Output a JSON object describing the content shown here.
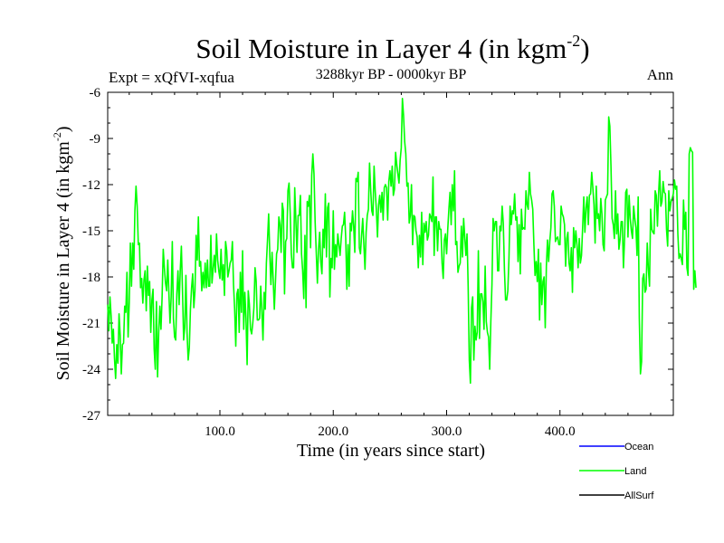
{
  "chart_data": {
    "type": "line",
    "title": {
      "main": "Soil Moisture in Layer 4 (in kgm",
      "sup": "-2",
      "close": ")"
    },
    "subtitle": "3288kyr BP - 0000kyr BP",
    "experiment": "Expt = xQfVI-xqfua",
    "season": "Ann",
    "xlabel": "Time (in years since start)",
    "ylabel": {
      "main": "Soil Moisture in Layer 4 (in kgm",
      "sup": "-2",
      "close": ")"
    },
    "xlim": [
      1,
      500
    ],
    "ylim": [
      -27,
      -6
    ],
    "xticks": [
      100,
      200,
      300,
      400
    ],
    "xtick_labels": [
      "100.0",
      "200.0",
      "300.0",
      "400.0"
    ],
    "yticks": [
      -27,
      -24,
      -21,
      -18,
      -15,
      -12,
      -9,
      -6
    ],
    "ytick_labels": [
      "-27",
      "-24",
      "-21",
      "-18",
      "-15",
      "-12",
      "-9",
      "-6"
    ],
    "grid": false,
    "legend_position": "bottom-right",
    "series": [
      {
        "name": "Ocean",
        "color": "#0000ff",
        "values": []
      },
      {
        "name": "Land",
        "color": "#00ff00",
        "x_start": 1,
        "x_step": 1,
        "values": [
          -19.8,
          -21.5,
          -19.3,
          -20.5,
          -22.3,
          -21.4,
          -23.3,
          -24.6,
          -22.4,
          -23.6,
          -20.4,
          -21.8,
          -24.3,
          -22.4,
          -22.3,
          -19.9,
          -20.3,
          -17.7,
          -21.9,
          -19.7,
          -15.8,
          -18.6,
          -15.8,
          -17.5,
          -13.7,
          -12.1,
          -13.4,
          -15.9,
          -15.8,
          -18.7,
          -18.1,
          -19.7,
          -18.2,
          -17.6,
          -20.2,
          -17.3,
          -19.2,
          -18.3,
          -21.6,
          -19.5,
          -18.8,
          -22.7,
          -24.0,
          -19.6,
          -24.5,
          -21.6,
          -19.9,
          -21.4,
          -19.3,
          -16.2,
          -17.4,
          -18.4,
          -18.9,
          -16.9,
          -19.1,
          -21.0,
          -19.3,
          -15.7,
          -20.7,
          -21.9,
          -22.1,
          -19.1,
          -17.6,
          -19.8,
          -17.6,
          -16.0,
          -18.9,
          -22.1,
          -21.3,
          -17.9,
          -21.6,
          -23.4,
          -22.6,
          -20.1,
          -18.7,
          -17.8,
          -20.0,
          -18.9,
          -15.3,
          -16.9,
          -14.1,
          -17.3,
          -17.0,
          -18.9,
          -17.7,
          -18.7,
          -17.1,
          -18.7,
          -16.9,
          -18.6,
          -18.6,
          -15.3,
          -18.4,
          -17.5,
          -16.6,
          -17.7,
          -15.2,
          -16.9,
          -17.6,
          -18.1,
          -16.2,
          -18.2,
          -17.2,
          -19.2,
          -15.7,
          -16.3,
          -18.0,
          -17.6,
          -17.1,
          -16.9,
          -15.7,
          -18.5,
          -20.1,
          -22.5,
          -19.1,
          -18.8,
          -21.6,
          -17.7,
          -20.3,
          -16.3,
          -21.4,
          -19.0,
          -20.7,
          -23.7,
          -18.9,
          -19.8,
          -21.4,
          -21.7,
          -21.0,
          -20.0,
          -17.4,
          -18.3,
          -20.8,
          -20.8,
          -20.7,
          -18.6,
          -20.2,
          -22.1,
          -19.0,
          -20.1,
          -17.1,
          -15.6,
          -13.9,
          -16.5,
          -18.5,
          -16.4,
          -18.2,
          -20.1,
          -18.3,
          -16.5,
          -16.2,
          -14.1,
          -14.6,
          -16.4,
          -13.2,
          -13.7,
          -19.1,
          -15.7,
          -15.5,
          -12.4,
          -11.9,
          -13.8,
          -16.5,
          -17.4,
          -17.4,
          -12.2,
          -14.3,
          -16.4,
          -14.0,
          -14.0,
          -12.7,
          -16.5,
          -17.6,
          -19.4,
          -15.3,
          -20.0,
          -13.1,
          -13.4,
          -12.7,
          -16.1,
          -11.4,
          -10.0,
          -11.3,
          -14.4,
          -16.4,
          -18.4,
          -16.2,
          -15.1,
          -17.0,
          -17.8,
          -14.9,
          -16.1,
          -12.6,
          -16.7,
          -13.5,
          -13.2,
          -19.3,
          -16.8,
          -17.4,
          -13.7,
          -17.5,
          -15.9,
          -16.7,
          -15.2,
          -15.9,
          -16.6,
          -15.5,
          -14.7,
          -14.6,
          -13.8,
          -15.5,
          -18.8,
          -15.9,
          -18.6,
          -14.5,
          -15.0,
          -13.7,
          -14.7,
          -16.4,
          -11.6,
          -11.8,
          -11.2,
          -16.1,
          -16.5,
          -15.3,
          -14.2,
          -15.9,
          -17.5,
          -15.1,
          -14.0,
          -13.6,
          -10.6,
          -12.3,
          -13.7,
          -14.0,
          -10.8,
          -12.4,
          -13.6,
          -15.4,
          -13.3,
          -12.7,
          -13.8,
          -12.5,
          -14.3,
          -12.2,
          -12.0,
          -12.2,
          -14.3,
          -11.8,
          -11.1,
          -12.1,
          -10.8,
          -12.7,
          -12.3,
          -9.9,
          -10.7,
          -11.3,
          -11.9,
          -10.4,
          -9.6,
          -6.4,
          -7.5,
          -9.2,
          -10.0,
          -12.1,
          -11.9,
          -14.5,
          -14.0,
          -12.0,
          -15.9,
          -14.0,
          -14.1,
          -15.0,
          -15.4,
          -17.4,
          -15.3,
          -16.7,
          -13.8,
          -17.2,
          -14.5,
          -15.1,
          -14.4,
          -15.6,
          -15.3,
          -13.9,
          -14.1,
          -14.4,
          -11.5,
          -16.6,
          -14.1,
          -14.1,
          -16.3,
          -14.4,
          -14.9,
          -14.9,
          -17.1,
          -18.1,
          -15.6,
          -15.2,
          -16.5,
          -14.9,
          -13.6,
          -12.5,
          -14.6,
          -12.0,
          -13.7,
          -11.1,
          -15.9,
          -15.7,
          -17.7,
          -17.3,
          -17.1,
          -14.7,
          -16.7,
          -14.2,
          -15.4,
          -16.6,
          -15.2,
          -18.6,
          -23.4,
          -24.9,
          -20.0,
          -19.3,
          -23.4,
          -21.2,
          -22.1,
          -21.6,
          -16.3,
          -22.0,
          -19.1,
          -19.1,
          -19.6,
          -21.4,
          -17.3,
          -20.9,
          -21.6,
          -21.9,
          -24.0,
          -20.9,
          -18.5,
          -14.2,
          -15.0,
          -14.4,
          -14.4,
          -17.6,
          -17.6,
          -14.7,
          -15.0,
          -13.4,
          -14.5,
          -17.5,
          -19.5,
          -19.5,
          -18.9,
          -16.8,
          -13.4,
          -14.6,
          -13.7,
          -13.9,
          -12.6,
          -14.3,
          -14.1,
          -17.0,
          -14.6,
          -17.8,
          -13.6,
          -14.9,
          -14.8,
          -14.9,
          -12.4,
          -13.3,
          -13.6,
          -11.2,
          -12.6,
          -13.0,
          -13.6,
          -15.9,
          -17.9,
          -17.0,
          -18.3,
          -16.2,
          -20.8,
          -17.1,
          -19.8,
          -18.3,
          -18.0,
          -21.3,
          -17.3,
          -15.6,
          -17.0,
          -15.7,
          -14.8,
          -12.6,
          -12.4,
          -13.4,
          -15.7,
          -15.5,
          -15.4,
          -15.9,
          -15.9,
          -13.4,
          -13.9,
          -14.1,
          -14.6,
          -17.3,
          -15.5,
          -15.1,
          -17.1,
          -17.6,
          -16.1,
          -19.0,
          -14.8,
          -16.1,
          -15.0,
          -15.9,
          -17.4,
          -15.5,
          -17.1,
          -16.6,
          -14.8,
          -12.8,
          -15.1,
          -13.5,
          -12.8,
          -14.6,
          -12.7,
          -12.6,
          -11.2,
          -12.2,
          -13.3,
          -15.8,
          -12.1,
          -14.2,
          -13.9,
          -15.0,
          -12.9,
          -13.9,
          -15.9,
          -16.3,
          -13.0,
          -12.8,
          -12.6,
          -7.6,
          -8.2,
          -10.8,
          -14.2,
          -14.6,
          -15.5,
          -12.4,
          -15.2,
          -13.9,
          -16.2,
          -15.6,
          -14.4,
          -14.4,
          -17.4,
          -15.5,
          -12.5,
          -12.3,
          -15.4,
          -12.7,
          -14.2,
          -15.0,
          -15.5,
          -13.4,
          -14.2,
          -14.8,
          -16.6,
          -12.8,
          -20.7,
          -24.3,
          -23.5,
          -18.1,
          -17.8,
          -19.0,
          -18.8,
          -15.8,
          -17.5,
          -18.6,
          -13.6,
          -14.9,
          -15.1,
          -15.2,
          -12.4,
          -12.7,
          -14.7,
          -12.6,
          -11.1,
          -13.4,
          -13.1,
          -11.8,
          -12.5,
          -12.6,
          -14.9,
          -16.0,
          -12.4,
          -13.7,
          -13.1,
          -12.9,
          -12.6,
          -11.7,
          -12.3,
          -12.1,
          -15.2,
          -16.8,
          -16.5,
          -16.8,
          -17.2,
          -13.0,
          -14.9,
          -13.8,
          -17.4,
          -17.9,
          -10.0,
          -9.6,
          -9.8,
          -9.9,
          -18.8,
          -17.6,
          -18.7
        ]
      },
      {
        "name": "AllSurf",
        "color": "#000000",
        "values": []
      }
    ]
  }
}
